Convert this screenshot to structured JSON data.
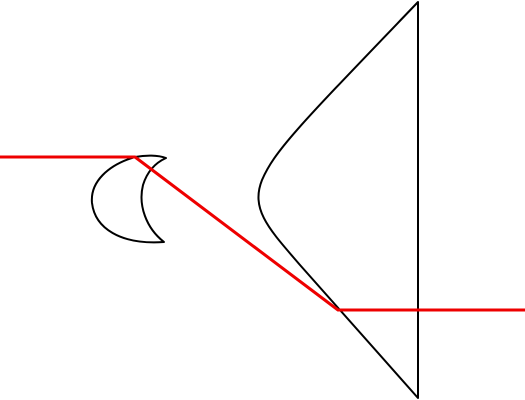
{
  "diagram": {
    "background_color": "#ffffff",
    "lens_color": "#000000",
    "ray_color": "#ee0000",
    "elements": [
      {
        "kind": "crescent-lens",
        "label": ""
      },
      {
        "kind": "prism-lens",
        "label": ""
      },
      {
        "kind": "light-ray",
        "label": ""
      }
    ]
  }
}
